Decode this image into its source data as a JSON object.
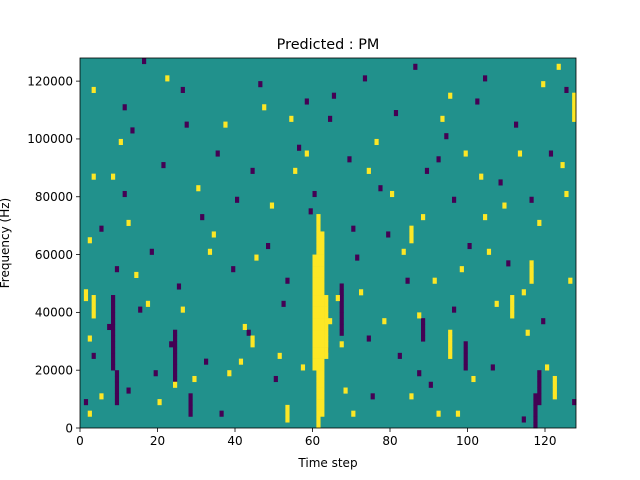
{
  "chart_data": {
    "type": "heatmap",
    "title": "Predicted : PM",
    "xlabel": "Time step",
    "ylabel": "Frequency (Hz)",
    "xlim": [
      0,
      128
    ],
    "ylim": [
      0,
      128000
    ],
    "x_ticks": [
      0,
      20,
      40,
      60,
      80,
      100,
      120
    ],
    "y_ticks": [
      0,
      20000,
      40000,
      60000,
      80000,
      100000,
      120000
    ],
    "n_time_steps": 128,
    "n_freq_bins": 64,
    "colormap": [
      "#440154",
      "#21918c",
      "#fde725"
    ],
    "value_levels": [
      -1,
      0,
      1
    ],
    "background_value": 0,
    "grid": false,
    "legend": "none",
    "high_runs": [
      {
        "t": 61,
        "f0": 0,
        "f1": 36
      },
      {
        "t": 62,
        "f0": 2,
        "f1": 33
      },
      {
        "t": 60,
        "f0": 10,
        "f1": 29
      },
      {
        "t": 63,
        "f0": 12,
        "f1": 22
      },
      {
        "t": 122,
        "f0": 5,
        "f1": 8
      },
      {
        "t": 127,
        "f0": 53,
        "f1": 57
      },
      {
        "t": 116,
        "f0": 25,
        "f1": 28
      },
      {
        "t": 95,
        "f0": 12,
        "f1": 16
      },
      {
        "t": 111,
        "f0": 19,
        "f1": 22
      },
      {
        "t": 3,
        "f0": 19,
        "f1": 22
      },
      {
        "t": 1,
        "f0": 22,
        "f1": 23
      },
      {
        "t": 53,
        "f0": 1,
        "f1": 3
      },
      {
        "t": 44,
        "f0": 14,
        "f1": 15
      },
      {
        "t": 85,
        "f0": 32,
        "f1": 34
      }
    ],
    "high_cells": [
      [
        2,
        2
      ],
      [
        2,
        15
      ],
      [
        2,
        32
      ],
      [
        3,
        43
      ],
      [
        3,
        58
      ],
      [
        5,
        5
      ],
      [
        8,
        43
      ],
      [
        12,
        35
      ],
      [
        17,
        21
      ],
      [
        22,
        60
      ],
      [
        24,
        7
      ],
      [
        26,
        20
      ],
      [
        29,
        8
      ],
      [
        30,
        41
      ],
      [
        33,
        30
      ],
      [
        37,
        52
      ],
      [
        38,
        9
      ],
      [
        41,
        11
      ],
      [
        45,
        29
      ],
      [
        47,
        55
      ],
      [
        49,
        38
      ],
      [
        51,
        12
      ],
      [
        54,
        53
      ],
      [
        57,
        10
      ],
      [
        58,
        47
      ],
      [
        64,
        18
      ],
      [
        66,
        22
      ],
      [
        68,
        6
      ],
      [
        70,
        2
      ],
      [
        72,
        23
      ],
      [
        74,
        44
      ],
      [
        76,
        49
      ],
      [
        78,
        18
      ],
      [
        80,
        40
      ],
      [
        83,
        30
      ],
      [
        85,
        5
      ],
      [
        88,
        36
      ],
      [
        91,
        25
      ],
      [
        93,
        53
      ],
      [
        95,
        57
      ],
      [
        97,
        2
      ],
      [
        99,
        47
      ],
      [
        101,
        8
      ],
      [
        103,
        43
      ],
      [
        105,
        30
      ],
      [
        107,
        21
      ],
      [
        109,
        38
      ],
      [
        113,
        47
      ],
      [
        115,
        16
      ],
      [
        118,
        35
      ],
      [
        119,
        59
      ],
      [
        120,
        10
      ],
      [
        123,
        62
      ],
      [
        125,
        40
      ],
      [
        126,
        25
      ],
      [
        10,
        49
      ],
      [
        14,
        26
      ],
      [
        20,
        4
      ],
      [
        34,
        33
      ],
      [
        42,
        17
      ],
      [
        55,
        44
      ],
      [
        67,
        14
      ],
      [
        87,
        19
      ],
      [
        92,
        2
      ],
      [
        98,
        27
      ],
      [
        104,
        36
      ],
      [
        114,
        23
      ],
      [
        124,
        45
      ]
    ],
    "low_runs": [
      {
        "t": 117,
        "f0": 0,
        "f1": 5
      },
      {
        "t": 118,
        "f0": 4,
        "f1": 9
      },
      {
        "t": 8,
        "f0": 10,
        "f1": 22
      },
      {
        "t": 9,
        "f0": 4,
        "f1": 9
      },
      {
        "t": 24,
        "f0": 8,
        "f1": 16
      },
      {
        "t": 28,
        "f0": 2,
        "f1": 5
      },
      {
        "t": 88,
        "f0": 15,
        "f1": 18
      },
      {
        "t": 99,
        "f0": 10,
        "f1": 14
      },
      {
        "t": 67,
        "f0": 16,
        "f1": 24
      }
    ],
    "low_cells": [
      [
        1,
        4
      ],
      [
        3,
        12
      ],
      [
        5,
        34
      ],
      [
        7,
        17
      ],
      [
        9,
        27
      ],
      [
        11,
        40
      ],
      [
        12,
        6
      ],
      [
        13,
        51
      ],
      [
        15,
        20
      ],
      [
        16,
        63
      ],
      [
        18,
        30
      ],
      [
        19,
        9
      ],
      [
        21,
        45
      ],
      [
        23,
        14
      ],
      [
        25,
        24
      ],
      [
        27,
        52
      ],
      [
        31,
        36
      ],
      [
        32,
        11
      ],
      [
        35,
        47
      ],
      [
        36,
        2
      ],
      [
        39,
        27
      ],
      [
        40,
        39
      ],
      [
        43,
        16
      ],
      [
        46,
        59
      ],
      [
        48,
        31
      ],
      [
        50,
        8
      ],
      [
        52,
        21
      ],
      [
        56,
        48
      ],
      [
        59,
        37
      ],
      [
        63,
        13
      ],
      [
        65,
        57
      ],
      [
        69,
        46
      ],
      [
        71,
        29
      ],
      [
        73,
        60
      ],
      [
        75,
        5
      ],
      [
        77,
        41
      ],
      [
        79,
        33
      ],
      [
        81,
        54
      ],
      [
        82,
        12
      ],
      [
        84,
        25
      ],
      [
        86,
        62
      ],
      [
        89,
        44
      ],
      [
        90,
        7
      ],
      [
        94,
        50
      ],
      [
        96,
        20
      ],
      [
        100,
        31
      ],
      [
        102,
        56
      ],
      [
        106,
        10
      ],
      [
        108,
        42
      ],
      [
        110,
        28
      ],
      [
        112,
        52
      ],
      [
        114,
        1
      ],
      [
        116,
        39
      ],
      [
        119,
        18
      ],
      [
        121,
        47
      ],
      [
        125,
        58
      ],
      [
        127,
        4
      ],
      [
        60,
        40
      ],
      [
        64,
        53
      ],
      [
        70,
        34
      ],
      [
        87,
        9
      ],
      [
        92,
        46
      ],
      [
        11,
        55
      ],
      [
        26,
        58
      ],
      [
        44,
        44
      ],
      [
        53,
        25
      ],
      [
        58,
        56
      ],
      [
        74,
        15
      ],
      [
        96,
        39
      ],
      [
        104,
        60
      ]
    ]
  }
}
